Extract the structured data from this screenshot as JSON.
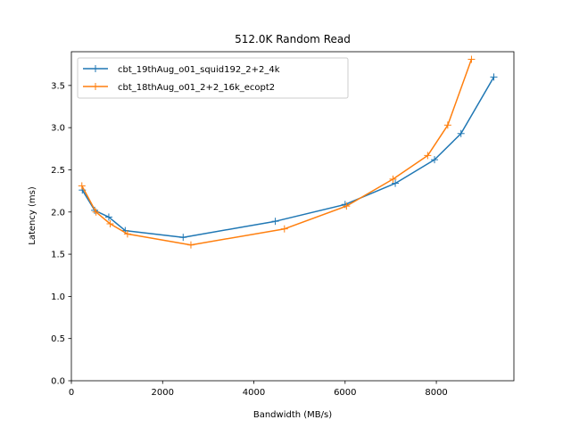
{
  "chart_data": {
    "type": "line",
    "title": "512.0K  Random Read",
    "xlabel": "Bandwidth (MB/s)",
    "ylabel": "Latency (ms)",
    "xlim": [
      0,
      9700
    ],
    "ylim": [
      0,
      3.9
    ],
    "xticks": [
      0,
      2000,
      4000,
      6000,
      8000
    ],
    "yticks": [
      0.0,
      0.5,
      1.0,
      1.5,
      2.0,
      2.5,
      3.0,
      3.5
    ],
    "xtick_labels": [
      "0",
      "2000",
      "4000",
      "6000",
      "8000"
    ],
    "ytick_labels": [
      "0.0",
      "0.5",
      "1.0",
      "1.5",
      "2.0",
      "2.5",
      "3.0",
      "3.5"
    ],
    "grid": false,
    "legend_position": "top-left",
    "series": [
      {
        "name": "cbt_19thAug_o01_squid192_2+2_4k",
        "color": "#1f77b4",
        "marker": "plus",
        "x": [
          240,
          510,
          820,
          1180,
          2450,
          4470,
          6000,
          7100,
          7960,
          8540,
          9260
        ],
        "y": [
          2.26,
          2.02,
          1.94,
          1.78,
          1.7,
          1.89,
          2.09,
          2.34,
          2.62,
          2.93,
          3.6
        ]
      },
      {
        "name": "cbt_18thAug_o01_2+2_16k_ecopt2",
        "color": "#ff7f0e",
        "marker": "plus",
        "x": [
          230,
          540,
          850,
          1230,
          2620,
          4670,
          6030,
          7050,
          7810,
          8250,
          8770
        ],
        "y": [
          2.31,
          2.0,
          1.86,
          1.74,
          1.61,
          1.8,
          2.07,
          2.39,
          2.67,
          3.03,
          3.81
        ]
      }
    ]
  }
}
